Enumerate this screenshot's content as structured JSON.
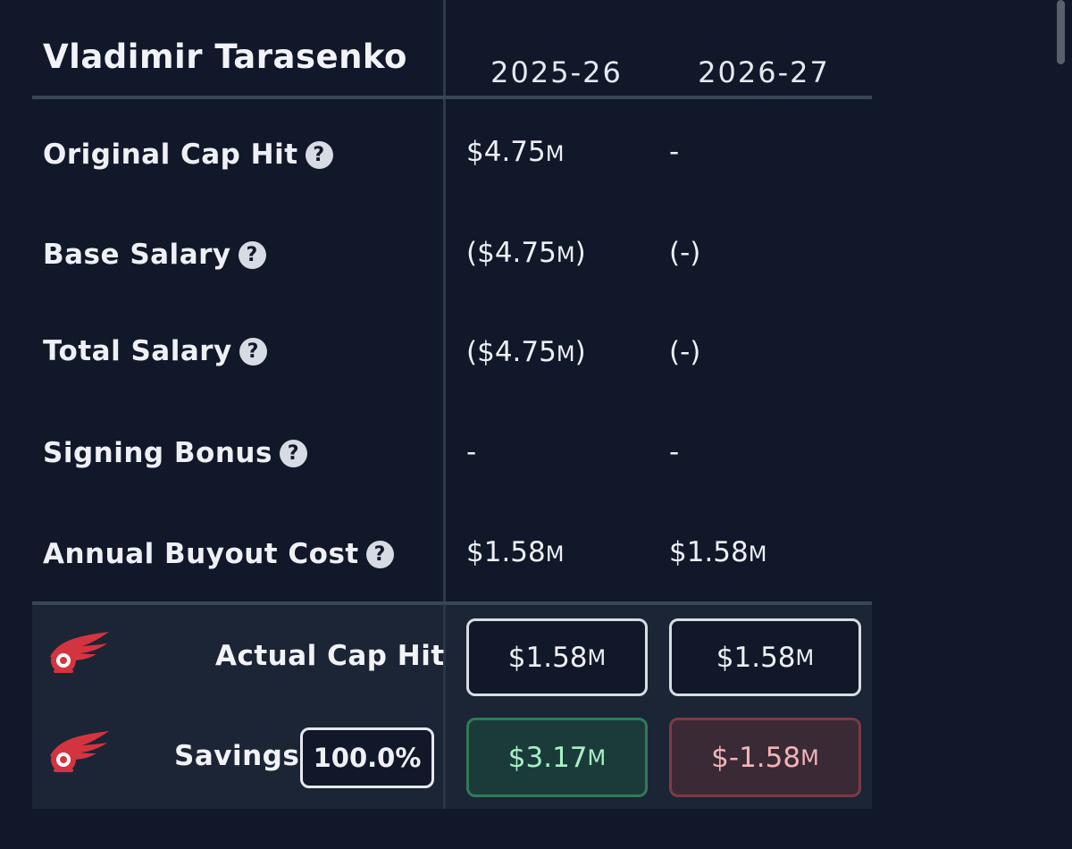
{
  "player": {
    "name": "Vladimir Tarasenko"
  },
  "seasons": [
    "2025-26",
    "2026-27"
  ],
  "help_glyph": "?",
  "rows": [
    {
      "label": "Original Cap Hit",
      "values": [
        {
          "text": "$4.75",
          "unit": "M",
          "suffix": ""
        },
        {
          "text": "-",
          "unit": "",
          "suffix": ""
        }
      ]
    },
    {
      "label": "Base Salary",
      "values": [
        {
          "text": "($4.75",
          "unit": "M",
          "suffix": ")"
        },
        {
          "text": "(-)",
          "unit": "",
          "suffix": ""
        }
      ]
    },
    {
      "label": "Total Salary",
      "values": [
        {
          "text": "($4.75",
          "unit": "M",
          "suffix": ")"
        },
        {
          "text": "(-)",
          "unit": "",
          "suffix": ""
        }
      ]
    },
    {
      "label": "Signing Bonus",
      "values": [
        {
          "text": "-",
          "unit": "",
          "suffix": ""
        },
        {
          "text": "-",
          "unit": "",
          "suffix": ""
        }
      ]
    },
    {
      "label": "Annual Buyout Cost",
      "values": [
        {
          "text": "$1.58",
          "unit": "M",
          "suffix": ""
        },
        {
          "text": "$1.58",
          "unit": "M",
          "suffix": ""
        }
      ]
    }
  ],
  "footer": {
    "actual_cap_hit": {
      "label": "Actual Cap Hit",
      "values": [
        {
          "text": "$1.58",
          "unit": "M"
        },
        {
          "text": "$1.58",
          "unit": "M"
        }
      ]
    },
    "savings": {
      "label": "Savings",
      "percent": "100.0%",
      "values": [
        {
          "text": "$3.17",
          "unit": "M"
        },
        {
          "text": "$-1.58",
          "unit": "M"
        }
      ]
    }
  },
  "team_logo_icon": "red-wings-logo-icon",
  "colors": {
    "background": "#101829",
    "footer_background": "#1c2536",
    "positive": "#a8f0c6",
    "negative": "#f2b4b8",
    "logo_red": "#d4343f"
  }
}
